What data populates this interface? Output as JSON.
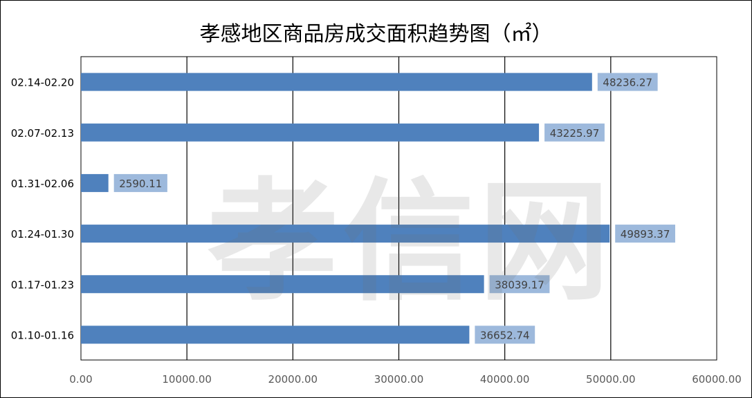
{
  "chart_data": {
    "type": "bar",
    "orientation": "horizontal",
    "title": "孝感地区商品房成交面积趋势图（㎡）",
    "categories": [
      "01.10-01.16",
      "01.17-01.23",
      "01.24-01.30",
      "01.31-02.06",
      "02.07-02.13",
      "02.14-02.20"
    ],
    "values": [
      36652.74,
      38039.17,
      49893.37,
      2590.11,
      43225.97,
      48236.27
    ],
    "value_labels": [
      "36652.74",
      "38039.17",
      "49893.37",
      "2590.11",
      "43225.97",
      "48236.27"
    ],
    "xlim": [
      0,
      60000
    ],
    "x_ticks": [
      0,
      10000,
      20000,
      30000,
      40000,
      50000,
      60000
    ],
    "x_tick_labels": [
      "0.00",
      "10000.00",
      "20000.00",
      "30000.00",
      "40000.00",
      "50000.00",
      "60000.00"
    ],
    "grid": "vertical",
    "bar_color": "#4f81bd",
    "label_bg_color": "#9db9dc",
    "legend": "none"
  },
  "watermark": "孝信网"
}
